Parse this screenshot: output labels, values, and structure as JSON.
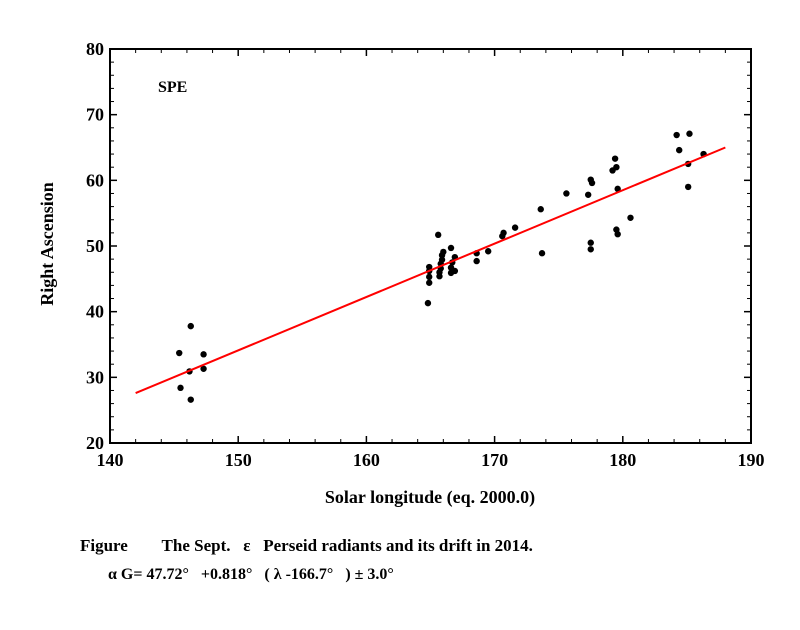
{
  "chart_data": {
    "type": "scatter",
    "title": "",
    "annotation": "SPE",
    "xlabel": "Solar longitude (eq. 2000.0)",
    "ylabel": "Right Ascension",
    "xlim": [
      140,
      190
    ],
    "ylim": [
      20,
      80
    ],
    "xticks": [
      140,
      150,
      160,
      170,
      180,
      190
    ],
    "yticks": [
      20,
      30,
      40,
      50,
      60,
      70,
      80
    ],
    "grid": false,
    "points": [
      {
        "x": 145.4,
        "y": 33.7
      },
      {
        "x": 145.5,
        "y": 28.4
      },
      {
        "x": 146.3,
        "y": 37.8
      },
      {
        "x": 146.2,
        "y": 30.9
      },
      {
        "x": 146.3,
        "y": 26.6
      },
      {
        "x": 147.3,
        "y": 33.5
      },
      {
        "x": 147.3,
        "y": 31.3
      },
      {
        "x": 164.8,
        "y": 41.3
      },
      {
        "x": 164.9,
        "y": 44.4
      },
      {
        "x": 164.9,
        "y": 45.3
      },
      {
        "x": 164.9,
        "y": 46.2
      },
      {
        "x": 164.9,
        "y": 46.8
      },
      {
        "x": 165.6,
        "y": 51.7
      },
      {
        "x": 165.7,
        "y": 45.4
      },
      {
        "x": 165.7,
        "y": 46.0
      },
      {
        "x": 165.8,
        "y": 46.6
      },
      {
        "x": 165.8,
        "y": 47.3
      },
      {
        "x": 165.9,
        "y": 47.9
      },
      {
        "x": 165.9,
        "y": 48.6
      },
      {
        "x": 166.0,
        "y": 49.1
      },
      {
        "x": 166.6,
        "y": 45.9
      },
      {
        "x": 166.6,
        "y": 46.7
      },
      {
        "x": 166.7,
        "y": 47.5
      },
      {
        "x": 166.6,
        "y": 49.7
      },
      {
        "x": 166.9,
        "y": 46.2
      },
      {
        "x": 166.9,
        "y": 48.3
      },
      {
        "x": 168.6,
        "y": 47.7
      },
      {
        "x": 168.6,
        "y": 48.9
      },
      {
        "x": 169.5,
        "y": 49.2
      },
      {
        "x": 170.6,
        "y": 51.5
      },
      {
        "x": 170.7,
        "y": 52.0
      },
      {
        "x": 171.6,
        "y": 52.8
      },
      {
        "x": 173.6,
        "y": 55.6
      },
      {
        "x": 173.7,
        "y": 48.9
      },
      {
        "x": 175.6,
        "y": 58.0
      },
      {
        "x": 177.3,
        "y": 57.8
      },
      {
        "x": 177.5,
        "y": 60.1
      },
      {
        "x": 177.6,
        "y": 59.6
      },
      {
        "x": 177.5,
        "y": 50.5
      },
      {
        "x": 177.5,
        "y": 49.5
      },
      {
        "x": 179.2,
        "y": 61.5
      },
      {
        "x": 179.4,
        "y": 63.3
      },
      {
        "x": 179.5,
        "y": 62.0
      },
      {
        "x": 179.6,
        "y": 58.7
      },
      {
        "x": 179.5,
        "y": 52.5
      },
      {
        "x": 179.6,
        "y": 51.8
      },
      {
        "x": 180.6,
        "y": 54.3
      },
      {
        "x": 184.2,
        "y": 66.9
      },
      {
        "x": 184.4,
        "y": 64.6
      },
      {
        "x": 185.2,
        "y": 67.1
      },
      {
        "x": 185.1,
        "y": 62.5
      },
      {
        "x": 185.1,
        "y": 59.0
      },
      {
        "x": 186.3,
        "y": 64.0
      }
    ],
    "fit_line": {
      "x": [
        142.0,
        188.0
      ],
      "y": [
        27.6,
        65.0
      ],
      "color": "#ff0000",
      "equation": "αG = 47.72 + 0.818(λ - 166.7)"
    },
    "marker_color": "#000000"
  },
  "caption": {
    "line1": "Figure        The Sept.   ε   Perseid radiants and its drift in 2014.",
    "line2": "α G= 47.72°   +0.818°   ( λ -166.7°   ) ± 3.0°"
  }
}
